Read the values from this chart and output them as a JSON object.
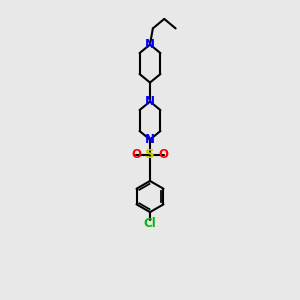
{
  "bg_color": "#e8e8e8",
  "bond_color": "#000000",
  "N_color": "#0000ff",
  "S_color": "#cccc00",
  "O_color": "#ff0000",
  "Cl_color": "#00bb00",
  "line_width": 1.5,
  "font_size_atom": 8.5,
  "xlim": [
    3.2,
    6.8
  ],
  "ylim": [
    1.5,
    17.0
  ]
}
